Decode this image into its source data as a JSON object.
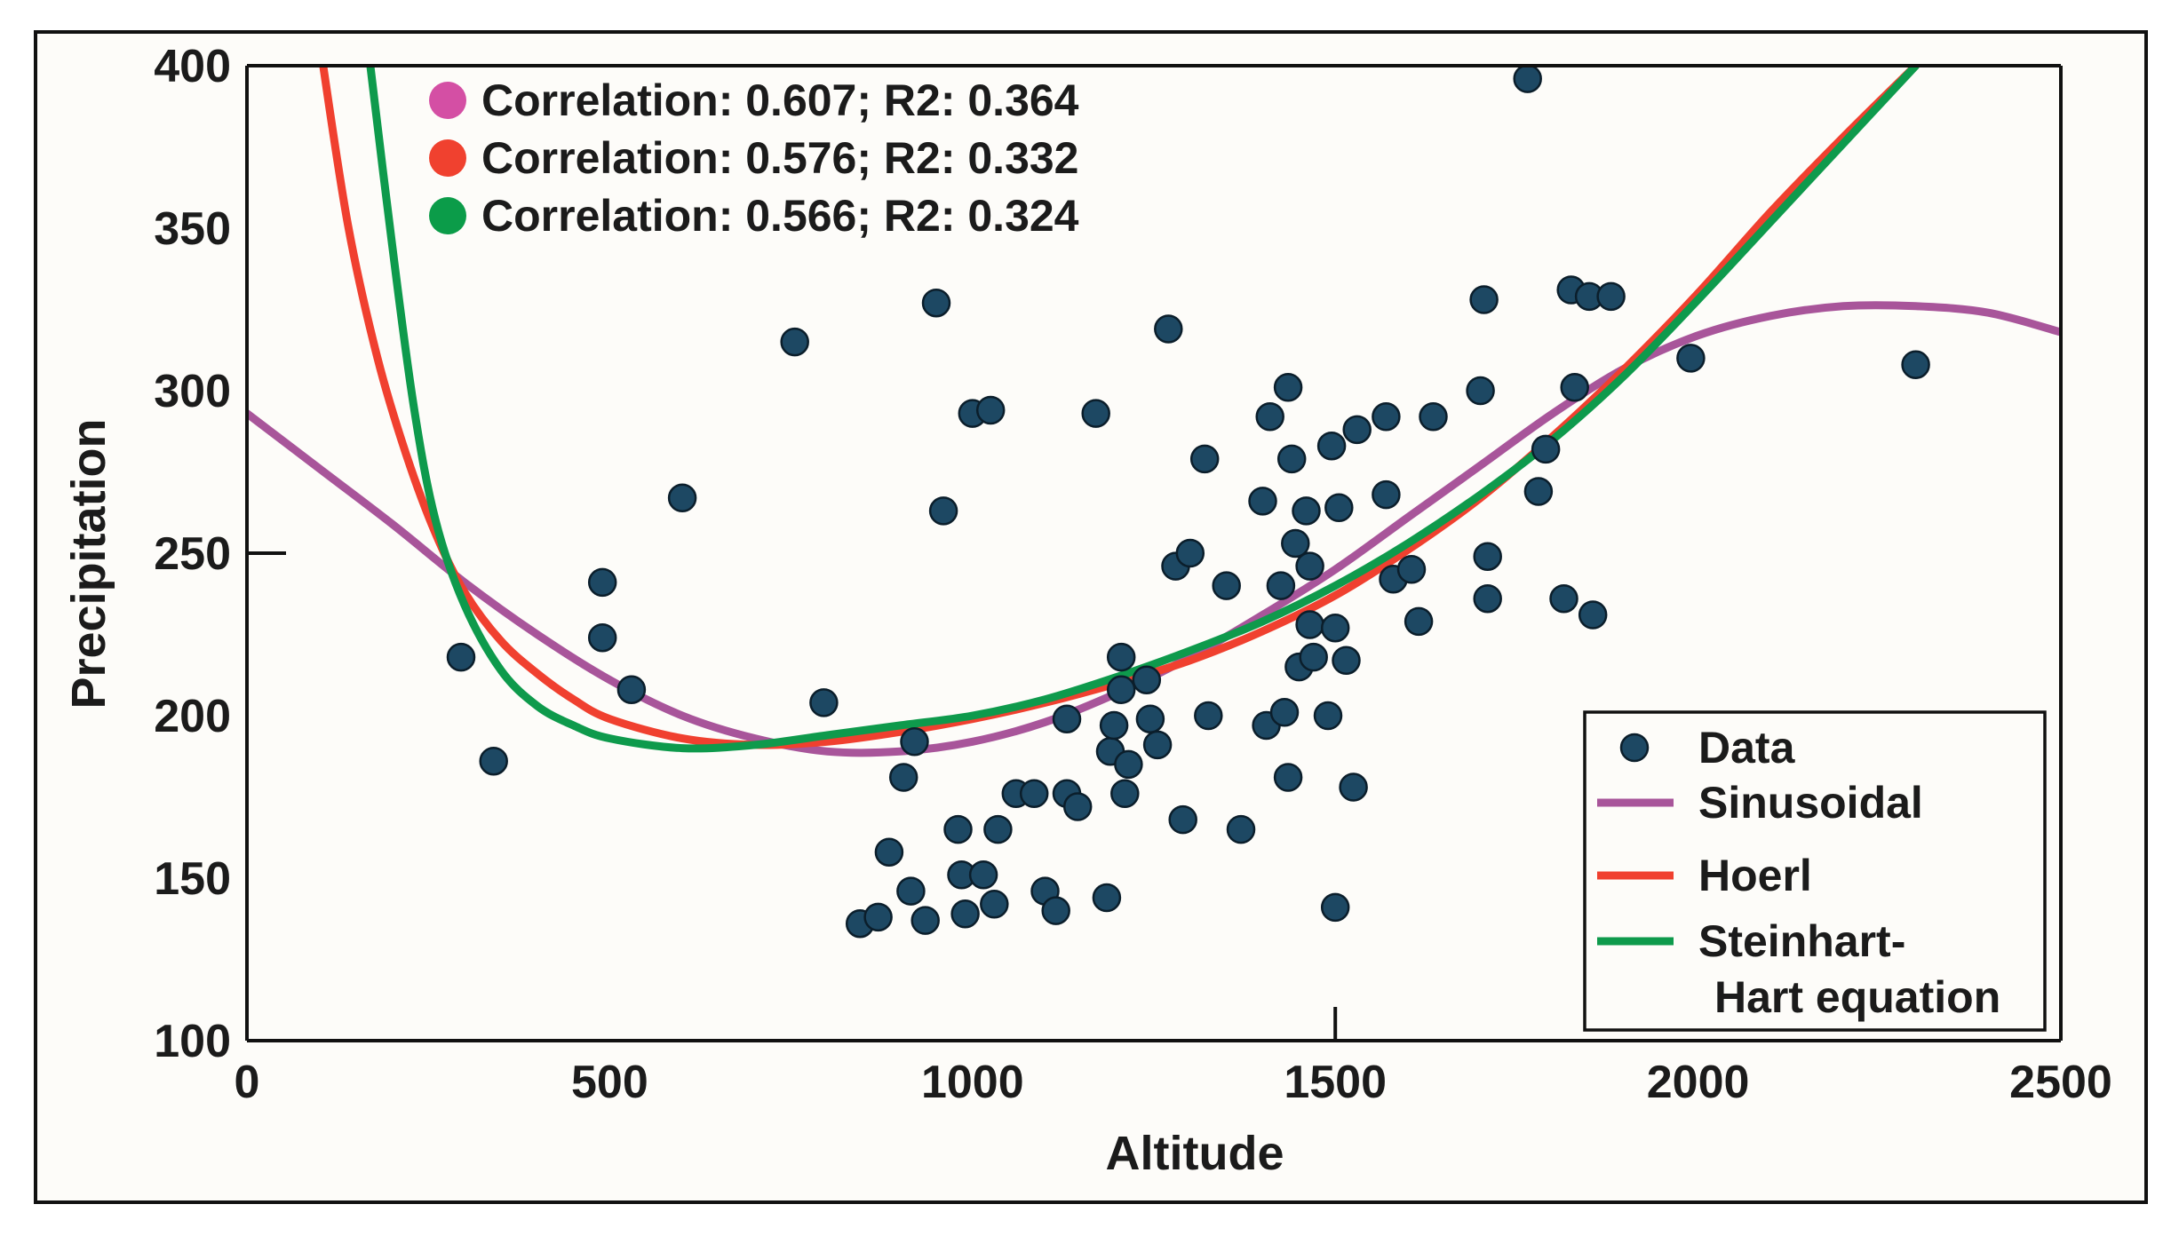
{
  "chart_data": {
    "type": "scatter",
    "xlabel": "Altitude",
    "ylabel": "Precipitation",
    "xlim": [
      0,
      2500
    ],
    "ylim": [
      100,
      400
    ],
    "xticks": [
      0,
      500,
      1000,
      1500,
      2000,
      2500
    ],
    "yticks": [
      100,
      150,
      200,
      250,
      300,
      350,
      400
    ],
    "grid": false,
    "legend_position": "bottom-right",
    "colors": {
      "data": "#1d4863",
      "data_edge": "#0b1e2b",
      "sinusoidal": "#a8559a",
      "hoerl": "#f0402f",
      "steinhart": "#0e9a4c",
      "annotation_pink": "#d44fa4",
      "annotation_red": "#f0412f",
      "annotation_green": "#0b9c49",
      "axis": "#111111"
    },
    "annotations": [
      {
        "text": "Correlation: 0.607; R2: 0.364",
        "color_key": "annotation_pink"
      },
      {
        "text": "Correlation: 0.576; R2: 0.332",
        "color_key": "annotation_red"
      },
      {
        "text": "Correlation: 0.566; R2: 0.324",
        "color_key": "annotation_green"
      }
    ],
    "legend": [
      {
        "label": "Data",
        "kind": "marker",
        "color_key": "data"
      },
      {
        "label": "Sinusoidal",
        "kind": "line",
        "color_key": "sinusoidal"
      },
      {
        "label": "Hoerl",
        "kind": "line",
        "color_key": "hoerl"
      },
      {
        "label": "Steinhart-",
        "label2": "Hart equation",
        "kind": "line",
        "color_key": "steinhart"
      }
    ],
    "series": [
      {
        "name": "Data",
        "kind": "scatter",
        "points": [
          [
            295,
            218
          ],
          [
            340,
            186
          ],
          [
            490,
            241
          ],
          [
            490,
            224
          ],
          [
            530,
            208
          ],
          [
            600,
            267
          ],
          [
            755,
            315
          ],
          [
            795,
            204
          ],
          [
            845,
            136
          ],
          [
            870,
            138
          ],
          [
            885,
            158
          ],
          [
            905,
            181
          ],
          [
            915,
            146
          ],
          [
            920,
            192
          ],
          [
            935,
            137
          ],
          [
            950,
            327
          ],
          [
            960,
            263
          ],
          [
            980,
            165
          ],
          [
            985,
            151
          ],
          [
            990,
            139
          ],
          [
            1000,
            293
          ],
          [
            1015,
            151
          ],
          [
            1025,
            294
          ],
          [
            1030,
            142
          ],
          [
            1035,
            165
          ],
          [
            1060,
            176
          ],
          [
            1085,
            176
          ],
          [
            1100,
            146
          ],
          [
            1115,
            140
          ],
          [
            1130,
            199
          ],
          [
            1130,
            176
          ],
          [
            1145,
            172
          ],
          [
            1170,
            293
          ],
          [
            1185,
            144
          ],
          [
            1190,
            189
          ],
          [
            1195,
            197
          ],
          [
            1205,
            218
          ],
          [
            1205,
            208
          ],
          [
            1210,
            176
          ],
          [
            1215,
            185
          ],
          [
            1240,
            211
          ],
          [
            1245,
            199
          ],
          [
            1255,
            191
          ],
          [
            1270,
            319
          ],
          [
            1280,
            246
          ],
          [
            1290,
            168
          ],
          [
            1300,
            250
          ],
          [
            1320,
            279
          ],
          [
            1325,
            200
          ],
          [
            1350,
            240
          ],
          [
            1370,
            165
          ],
          [
            1400,
            266
          ],
          [
            1405,
            197
          ],
          [
            1410,
            292
          ],
          [
            1425,
            240
          ],
          [
            1430,
            201
          ],
          [
            1435,
            181
          ],
          [
            1435,
            301
          ],
          [
            1440,
            279
          ],
          [
            1445,
            253
          ],
          [
            1450,
            215
          ],
          [
            1460,
            263
          ],
          [
            1465,
            246
          ],
          [
            1465,
            228
          ],
          [
            1470,
            218
          ],
          [
            1490,
            200
          ],
          [
            1495,
            283
          ],
          [
            1500,
            227
          ],
          [
            1500,
            141
          ],
          [
            1505,
            264
          ],
          [
            1515,
            217
          ],
          [
            1525,
            178
          ],
          [
            1530,
            288
          ],
          [
            1570,
            292
          ],
          [
            1570,
            268
          ],
          [
            1580,
            242
          ],
          [
            1605,
            245
          ],
          [
            1615,
            229
          ],
          [
            1635,
            292
          ],
          [
            1700,
            300
          ],
          [
            1705,
            328
          ],
          [
            1710,
            249
          ],
          [
            1710,
            236
          ],
          [
            1765,
            396
          ],
          [
            1780,
            269
          ],
          [
            1790,
            282
          ],
          [
            1815,
            236
          ],
          [
            1825,
            331
          ],
          [
            1830,
            301
          ],
          [
            1850,
            329
          ],
          [
            1855,
            231
          ],
          [
            1880,
            329
          ],
          [
            1990,
            310
          ],
          [
            2300,
            308
          ]
        ]
      },
      {
        "name": "Sinusoidal",
        "kind": "curve",
        "points": [
          [
            0,
            293
          ],
          [
            100,
            276
          ],
          [
            200,
            259
          ],
          [
            300,
            241
          ],
          [
            400,
            225
          ],
          [
            500,
            211
          ],
          [
            600,
            200
          ],
          [
            700,
            193
          ],
          [
            800,
            189
          ],
          [
            900,
            189
          ],
          [
            1000,
            192
          ],
          [
            1100,
            198
          ],
          [
            1200,
            207
          ],
          [
            1300,
            218
          ],
          [
            1400,
            231
          ],
          [
            1500,
            245
          ],
          [
            1600,
            261
          ],
          [
            1700,
            277
          ],
          [
            1800,
            293
          ],
          [
            1900,
            307
          ],
          [
            2000,
            317
          ],
          [
            2100,
            323
          ],
          [
            2200,
            326
          ],
          [
            2300,
            326
          ],
          [
            2400,
            324
          ],
          [
            2500,
            318
          ]
        ]
      },
      {
        "name": "Hoerl",
        "kind": "curve",
        "points": [
          [
            105,
            400
          ],
          [
            140,
            350
          ],
          [
            180,
            310
          ],
          [
            220,
            280
          ],
          [
            260,
            256
          ],
          [
            300,
            238
          ],
          [
            350,
            223
          ],
          [
            400,
            213
          ],
          [
            450,
            205
          ],
          [
            500,
            199
          ],
          [
            600,
            193
          ],
          [
            700,
            191
          ],
          [
            800,
            192
          ],
          [
            900,
            195
          ],
          [
            1000,
            199
          ],
          [
            1100,
            204
          ],
          [
            1200,
            210
          ],
          [
            1300,
            217
          ],
          [
            1400,
            226
          ],
          [
            1500,
            237
          ],
          [
            1600,
            251
          ],
          [
            1700,
            267
          ],
          [
            1800,
            286
          ],
          [
            1900,
            307
          ],
          [
            2000,
            330
          ],
          [
            2100,
            355
          ],
          [
            2200,
            378
          ],
          [
            2300,
            400
          ]
        ]
      },
      {
        "name": "Steinhart-Hart equation",
        "kind": "curve",
        "points": [
          [
            170,
            400
          ],
          [
            200,
            345
          ],
          [
            230,
            295
          ],
          [
            260,
            260
          ],
          [
            300,
            234
          ],
          [
            350,
            214
          ],
          [
            400,
            203
          ],
          [
            450,
            197
          ],
          [
            500,
            193
          ],
          [
            600,
            190
          ],
          [
            700,
            191
          ],
          [
            800,
            194
          ],
          [
            900,
            197
          ],
          [
            1000,
            200
          ],
          [
            1100,
            205
          ],
          [
            1200,
            212
          ],
          [
            1300,
            220
          ],
          [
            1400,
            229
          ],
          [
            1500,
            240
          ],
          [
            1600,
            253
          ],
          [
            1700,
            268
          ],
          [
            1800,
            285
          ],
          [
            1900,
            305
          ],
          [
            2000,
            328
          ],
          [
            2100,
            352
          ],
          [
            2200,
            376
          ],
          [
            2300,
            400
          ]
        ]
      }
    ]
  }
}
